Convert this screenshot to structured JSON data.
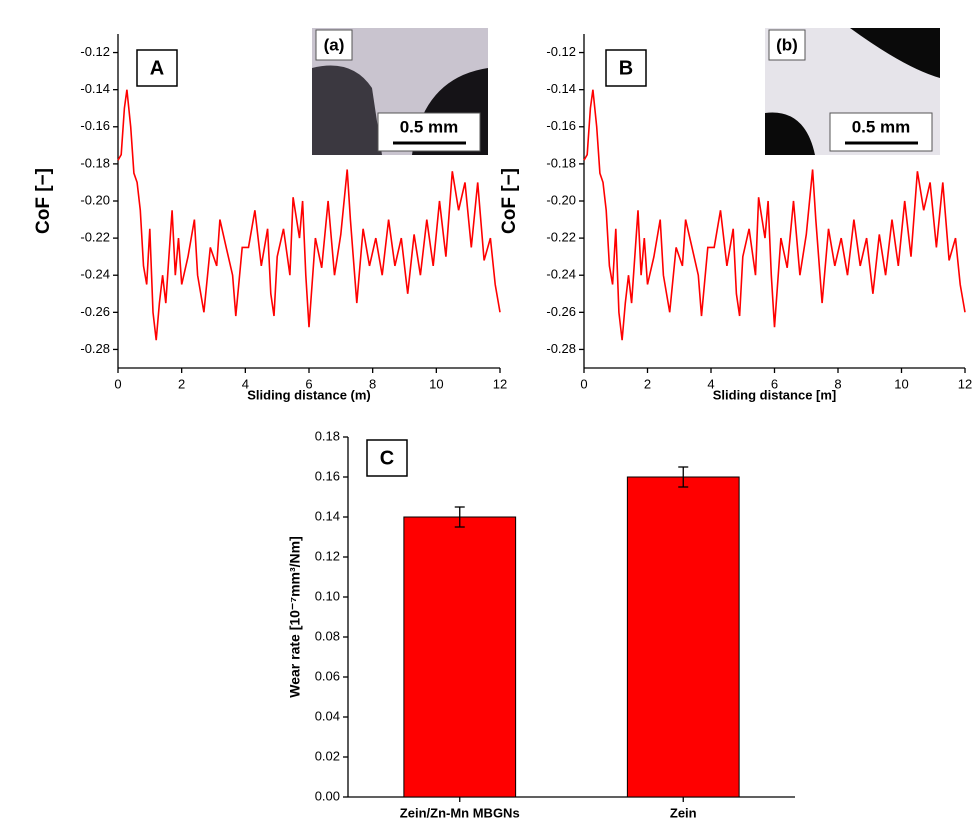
{
  "chart_data": [
    {
      "type": "line",
      "panel_label": "A",
      "inset_label": "(a)",
      "scale_bar": "0.5 mm",
      "x_label": "Sliding distance (m)",
      "y_label": "CoF [−]",
      "xlim": [
        0,
        12
      ],
      "xticks": [
        0,
        2,
        4,
        6,
        8,
        10,
        12
      ],
      "ylim": [
        -0.29,
        -0.11
      ],
      "yticks": [
        -0.12,
        -0.14,
        -0.16,
        -0.18,
        {
          "value": -0.2,
          "label": "-0.20"
        },
        -0.22,
        -0.24,
        -0.26,
        -0.28
      ],
      "series": [
        {
          "color": "#ff0000",
          "x": [
            0,
            0.1,
            0.2,
            0.28,
            0.4,
            0.5,
            0.6,
            0.7,
            0.8,
            0.9,
            1.0,
            1.1,
            1.2,
            1.3,
            1.4,
            1.5,
            1.6,
            1.7,
            1.8,
            1.9,
            2.0,
            2.2,
            2.4,
            2.5,
            2.7,
            2.9,
            3.1,
            3.2,
            3.4,
            3.6,
            3.7,
            3.9,
            4.1,
            4.3,
            4.5,
            4.7,
            4.8,
            4.9,
            5.0,
            5.2,
            5.4,
            5.5,
            5.7,
            5.8,
            5.9,
            6.0,
            6.2,
            6.4,
            6.6,
            6.8,
            7.0,
            7.2,
            7.3,
            7.5,
            7.7,
            7.9,
            8.1,
            8.3,
            8.5,
            8.7,
            8.9,
            9.1,
            9.3,
            9.5,
            9.7,
            9.9,
            10.1,
            10.3,
            10.5,
            10.7,
            10.9,
            11.1,
            11.3,
            11.5,
            11.7,
            11.85,
            12.0
          ],
          "values": [
            -0.178,
            -0.175,
            -0.15,
            -0.14,
            -0.16,
            -0.185,
            -0.19,
            -0.205,
            -0.235,
            -0.245,
            -0.215,
            -0.26,
            -0.275,
            -0.255,
            -0.24,
            -0.255,
            -0.23,
            -0.205,
            -0.24,
            -0.22,
            -0.245,
            -0.23,
            -0.21,
            -0.24,
            -0.26,
            -0.225,
            -0.235,
            -0.21,
            -0.225,
            -0.24,
            -0.262,
            -0.225,
            -0.225,
            -0.205,
            -0.235,
            -0.215,
            -0.25,
            -0.262,
            -0.23,
            -0.215,
            -0.24,
            -0.198,
            -0.22,
            -0.2,
            -0.24,
            -0.268,
            -0.22,
            -0.236,
            -0.2,
            -0.24,
            -0.218,
            -0.183,
            -0.21,
            -0.255,
            -0.215,
            -0.235,
            -0.22,
            -0.24,
            -0.21,
            -0.235,
            -0.22,
            -0.25,
            -0.218,
            -0.24,
            -0.21,
            -0.235,
            -0.2,
            -0.23,
            -0.184,
            -0.205,
            -0.19,
            -0.225,
            -0.19,
            -0.232,
            -0.22,
            -0.245,
            -0.26
          ]
        }
      ]
    },
    {
      "type": "line",
      "panel_label": "B",
      "inset_label": "(b)",
      "scale_bar": "0.5 mm",
      "x_label": "Sliding distance [m]",
      "y_label": "CoF [−]",
      "xlim": [
        0,
        12
      ],
      "xticks": [
        0,
        2,
        4,
        6,
        8,
        10,
        12
      ],
      "ylim": [
        -0.29,
        -0.11
      ],
      "yticks": [
        -0.12,
        -0.14,
        -0.16,
        -0.18,
        {
          "value": -0.2,
          "label": "-0.20"
        },
        -0.22,
        -0.24,
        -0.26,
        -0.28
      ],
      "series": [
        {
          "color": "#ff0000",
          "x": [
            0,
            0.1,
            0.2,
            0.28,
            0.4,
            0.5,
            0.6,
            0.7,
            0.8,
            0.9,
            1.0,
            1.1,
            1.2,
            1.3,
            1.4,
            1.5,
            1.6,
            1.7,
            1.8,
            1.9,
            2.0,
            2.2,
            2.4,
            2.5,
            2.7,
            2.9,
            3.1,
            3.2,
            3.4,
            3.6,
            3.7,
            3.9,
            4.1,
            4.3,
            4.5,
            4.7,
            4.8,
            4.9,
            5.0,
            5.2,
            5.4,
            5.5,
            5.7,
            5.8,
            5.9,
            6.0,
            6.2,
            6.4,
            6.6,
            6.8,
            7.0,
            7.2,
            7.3,
            7.5,
            7.7,
            7.9,
            8.1,
            8.3,
            8.5,
            8.7,
            8.9,
            9.1,
            9.3,
            9.5,
            9.7,
            9.9,
            10.1,
            10.3,
            10.5,
            10.7,
            10.9,
            11.1,
            11.3,
            11.5,
            11.7,
            11.85,
            12.0
          ],
          "values": [
            -0.178,
            -0.175,
            -0.15,
            -0.14,
            -0.16,
            -0.185,
            -0.19,
            -0.205,
            -0.235,
            -0.245,
            -0.215,
            -0.26,
            -0.275,
            -0.255,
            -0.24,
            -0.255,
            -0.23,
            -0.205,
            -0.24,
            -0.22,
            -0.245,
            -0.23,
            -0.21,
            -0.24,
            -0.26,
            -0.225,
            -0.235,
            -0.21,
            -0.225,
            -0.24,
            -0.262,
            -0.225,
            -0.225,
            -0.205,
            -0.235,
            -0.215,
            -0.25,
            -0.262,
            -0.23,
            -0.215,
            -0.24,
            -0.198,
            -0.22,
            -0.2,
            -0.24,
            -0.268,
            -0.22,
            -0.236,
            -0.2,
            -0.24,
            -0.218,
            -0.183,
            -0.21,
            -0.255,
            -0.215,
            -0.235,
            -0.22,
            -0.24,
            -0.21,
            -0.235,
            -0.22,
            -0.25,
            -0.218,
            -0.24,
            -0.21,
            -0.235,
            -0.2,
            -0.23,
            -0.184,
            -0.205,
            -0.19,
            -0.225,
            -0.19,
            -0.232,
            -0.22,
            -0.245,
            -0.26
          ]
        }
      ]
    },
    {
      "type": "bar",
      "panel_label": "C",
      "y_label": "Wear rate [10⁻⁷mm³/Nm]",
      "categories": [
        "Zein/Zn-Mn MBGNs",
        "Zein"
      ],
      "values": [
        0.14,
        0.16
      ],
      "errors": [
        0.005,
        0.005
      ],
      "color": "#ff0000",
      "ylim": [
        0,
        0.18
      ],
      "yticks": [
        {
          "value": 0,
          "label": "0.00"
        },
        0.02,
        0.04,
        0.06,
        0.08,
        {
          "value": 0.1,
          "label": "0.10"
        },
        0.12,
        0.14,
        0.16,
        0.18
      ]
    }
  ]
}
